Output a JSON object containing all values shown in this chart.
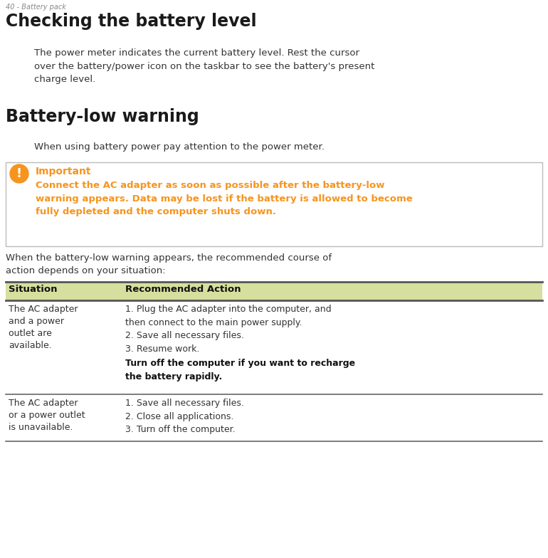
{
  "page_header": "40 - Battery pack",
  "title1": "Checking the battery level",
  "body1": "The power meter indicates the current battery level. Rest the cursor over the battery/power icon on the taskbar to see the battery's present charge level.",
  "title2": "Battery-low warning",
  "body2": "When using battery power pay attention to the power meter.",
  "important_title": "Important",
  "important_body": "Connect the AC adapter as soon as possible after the battery-low warning appears. Data may be lost if the battery is allowed to become fully depleted and the computer shuts down.",
  "warning_text": "When the battery-low warning appears, the recommended course of action depends on your situation:",
  "table_header_col1": "Situation",
  "table_header_col2": "Recommended Action",
  "table_row1_col1_lines": [
    "The AC adapter",
    "and a power",
    "outlet are",
    "available."
  ],
  "table_row1_col2_normal": "1. Plug the AC adapter into the computer, and\nthen connect to the main power supply.\n2. Save all necessary files.\n3. Resume work.",
  "table_row1_col2_bold": "Turn off the computer if you want to recharge\nthe battery rapidly.",
  "table_row2_col1_lines": [
    "The AC adapter",
    "or a power outlet",
    "is unavailable."
  ],
  "table_row2_col2": "1. Save all necessary files.\n2. Close all applications.\n3. Turn off the computer.",
  "bg_color": "#ffffff",
  "text_color": "#333333",
  "orange_color": "#F7941D",
  "header_bg": "#d6df9e",
  "border_color": "#888888",
  "important_border_color": "#bbbbbb"
}
